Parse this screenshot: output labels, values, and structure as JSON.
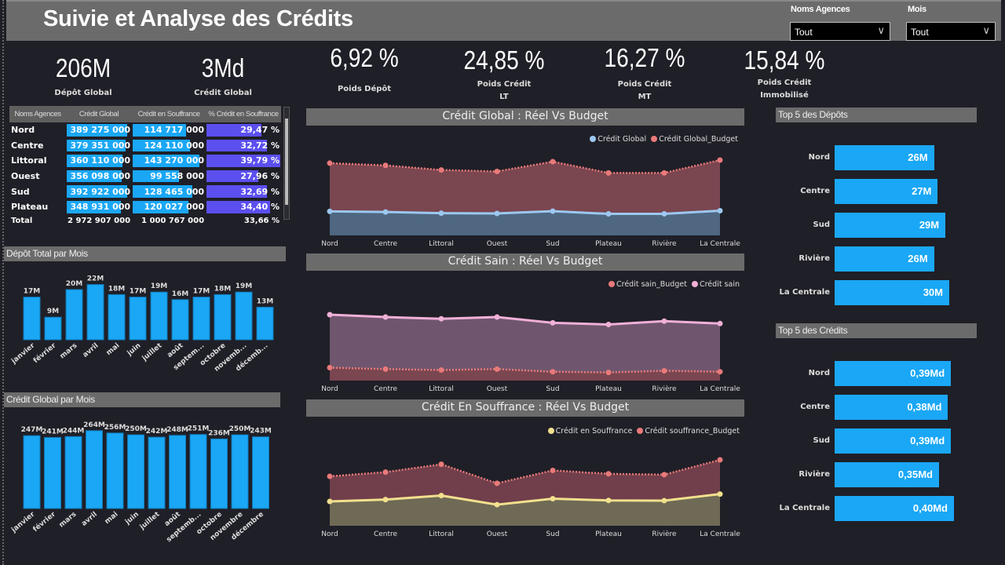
{
  "header": {
    "title": "Suivie et Analyse des Crédits",
    "slicers": [
      {
        "label": "Noms Agences",
        "value": "Tout"
      },
      {
        "label": "Mois",
        "value": "Tout"
      }
    ]
  },
  "kpis": [
    {
      "value": "206M",
      "label": "Dépôt Global"
    },
    {
      "value": "3Md",
      "label": "Crédit Global"
    },
    {
      "value": "6,92 %",
      "label": "Poids Dépôt"
    },
    {
      "value": "24,85 %",
      "label": "Poids Crédit",
      "label2": "LT"
    },
    {
      "value": "16,27 %",
      "label": "Poids Crédit",
      "label2": "MT"
    },
    {
      "value": "15,84 %",
      "label": "Poids Crédit",
      "label2": "Immobilisé"
    }
  ],
  "table": {
    "columns": [
      "Noms Agences",
      "Crédit Global",
      "Crédit en Souffrance",
      "% Crédit en Souffrance"
    ],
    "rows": [
      [
        "Nord",
        "389 275 000",
        "114 717 000",
        "29,47 %"
      ],
      [
        "Centre",
        "379 351 000",
        "124 110 000",
        "32,72 %"
      ],
      [
        "Littoral",
        "360 110 000",
        "143 270 000",
        "39,79 %"
      ],
      [
        "Ouest",
        "356 098 000",
        "99 558 000",
        "27,96 %"
      ],
      [
        "Sud",
        "392 922 000",
        "128 465 000",
        "32,69 %"
      ],
      [
        "Plateau",
        "348 931 000",
        "120 027 000",
        "34,40 %"
      ]
    ],
    "total": [
      "Total",
      "2 972 907 000",
      "1 000 767 000",
      "33,66 %"
    ],
    "bar_colors": [
      "#1aa7f5",
      "#1aa7f5",
      "#5b4ff0"
    ]
  },
  "chart_data": [
    {
      "id": "depot-mois",
      "type": "bar",
      "title": "Dépôt Total par Mois",
      "categories": [
        "janvier",
        "février",
        "mars",
        "avril",
        "mai",
        "juin",
        "juillet",
        "août",
        "septem...",
        "octobre",
        "novemb...",
        "décemb..."
      ],
      "values": [
        17,
        9,
        20,
        22,
        18,
        17,
        19,
        16,
        17,
        18,
        19,
        13
      ],
      "labels": [
        "17M",
        "9M",
        "20M",
        "22M",
        "18M",
        "17M",
        "19M",
        "16M",
        "17M",
        "18M",
        "19M",
        "13M"
      ],
      "unit": "M",
      "color": "#1aa7f5"
    },
    {
      "id": "credit-mois",
      "type": "bar",
      "title": "Crédit Global par Mois",
      "categories": [
        "janvier",
        "février",
        "mars",
        "avril",
        "mai",
        "juin",
        "juillet",
        "août",
        "septemb...",
        "octobre",
        "novembre",
        "décembre"
      ],
      "values": [
        247,
        241,
        244,
        264,
        256,
        250,
        242,
        248,
        251,
        236,
        250,
        243
      ],
      "labels": [
        "247M",
        "241M",
        "244M",
        "264M",
        "256M",
        "250M",
        "242M",
        "248M",
        "251M",
        "236M",
        "250M",
        "243M"
      ],
      "unit": "M",
      "color": "#1aa7f5"
    },
    {
      "id": "cg-line",
      "type": "area",
      "title": "Crédit Global : Réel Vs Budget",
      "categories": [
        "Nord",
        "Centre",
        "Littoral",
        "Ouest",
        "Sud",
        "Plateau",
        "Rivière",
        "La Centrale"
      ],
      "series": [
        {
          "name": "Crédit Global",
          "values": [
            389,
            379,
            360,
            356,
            393,
            349,
            350,
            400
          ],
          "color": "#9cc8f0",
          "fill": "#4f6781",
          "dashed": false
        },
        {
          "name": "Crédit Global_Budget",
          "values": [
            1170,
            1134,
            1060,
            1036,
            1195,
            1012,
            1012,
            1220
          ],
          "color": "#e97a7a",
          "fill": "#7a4650",
          "dashed": true
        }
      ],
      "legend": [
        "Crédit Global",
        "Crédit Global_Budget"
      ],
      "legend_position": "top-right",
      "unit": "M (estimated)"
    },
    {
      "id": "cs-line",
      "type": "area",
      "title": "Crédit Sain : Réel Vs Budget",
      "categories": [
        "Nord",
        "Centre",
        "Littoral",
        "Ouest",
        "Sud",
        "Plateau",
        "Rivière",
        "La Centrale"
      ],
      "series": [
        {
          "name": "Crédit sain",
          "values": [
            275,
            265,
            258,
            265,
            241,
            234,
            248,
            238
          ],
          "color": "#f0b0d8",
          "fill": "#6f566e",
          "dashed": false
        },
        {
          "name": "Crédit sain_Budget",
          "values": [
            54,
            48,
            44,
            48,
            37,
            34,
            41,
            37
          ],
          "color": "#e97a7a",
          "fill": "#7a4650",
          "dashed": true
        }
      ],
      "legend": [
        "Crédit sain_Budget",
        "Crédit sain"
      ],
      "legend_position": "top-right",
      "unit": "M (estimated)"
    },
    {
      "id": "csf-line",
      "type": "area",
      "title": "Crédit En Souffrance : Réel Vs Budget",
      "categories": [
        "Nord",
        "Centre",
        "Littoral",
        "Ouest",
        "Sud",
        "Plateau",
        "Rivière",
        "La Centrale"
      ],
      "series": [
        {
          "name": "Crédit en Souffrance",
          "values": [
            115,
            124,
            143,
            100,
            128,
            120,
            119,
            150
          ],
          "color": "#f2e08e",
          "fill": "#6e6a55",
          "dashed": false
        },
        {
          "name": "Crédit souffrance_Budget",
          "values": [
            234,
            254,
            291,
            201,
            262,
            246,
            242,
            312
          ],
          "color": "#e97a7a",
          "fill": "#703f4b",
          "dashed": true
        }
      ],
      "legend": [
        "Crédit en Souffrance",
        "Crédit souffrance_Budget"
      ],
      "legend_position": "top-right",
      "unit": "M (estimated)"
    },
    {
      "id": "top-depots",
      "type": "bar",
      "orientation": "horizontal",
      "title": "Top 5 des Dépôts",
      "categories": [
        "Nord",
        "Centre",
        "Sud",
        "Rivière",
        "La Centrale"
      ],
      "values": [
        26,
        27,
        29,
        26,
        30
      ],
      "labels": [
        "26M",
        "27M",
        "29M",
        "26M",
        "30M"
      ],
      "color": "#1aa7f5"
    },
    {
      "id": "top-credits",
      "type": "bar",
      "orientation": "horizontal",
      "title": "Top 5 des Crédits",
      "categories": [
        "Nord",
        "Centre",
        "Sud",
        "Rivière",
        "La Centrale"
      ],
      "values": [
        0.39,
        0.38,
        0.39,
        0.35,
        0.4
      ],
      "labels": [
        "0,39Md",
        "0,38Md",
        "0,39Md",
        "0,35Md",
        "0,40Md"
      ],
      "color": "#1aa7f5"
    }
  ]
}
